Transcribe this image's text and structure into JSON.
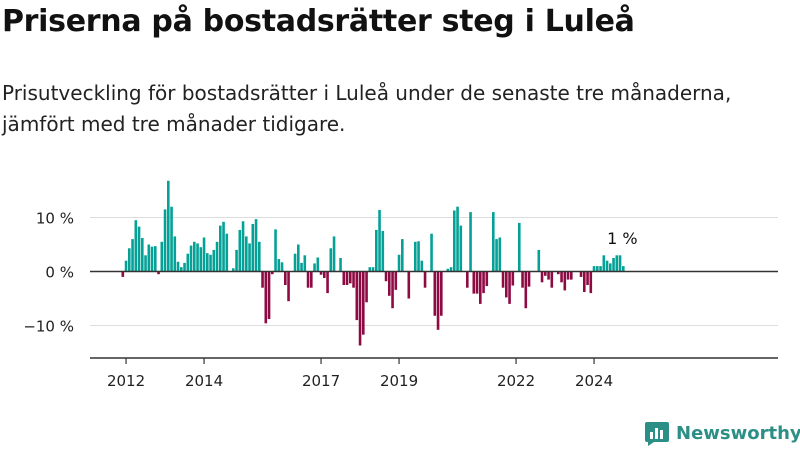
{
  "title": "Priserna på bostadsrätter steg i Luleå",
  "subtitle": "Prisutveckling för bostadsrätter i Luleå under de senaste tre månaderna, jämfört med tre månader tidigare.",
  "logo_text": "Newsworthy",
  "colors": {
    "positive": "#05a196",
    "negative": "#8e0a43",
    "axis": "#333333",
    "grid": "#dddddd",
    "logo": "#2c8f86"
  },
  "chart_data": {
    "type": "bar",
    "x_start": "2011-12",
    "x_end": "2024-12",
    "y_ticks": [
      {
        "value": 10,
        "label": "10 %"
      },
      {
        "value": 0,
        "label": "0 %"
      },
      {
        "value": -10,
        "label": "−10 %"
      }
    ],
    "x_ticks": [
      "2012",
      "2014",
      "2017",
      "2019",
      "2022",
      "2024"
    ],
    "ylim": [
      -15.5,
      17
    ],
    "grid": true,
    "annotation": {
      "label": "1 %",
      "value": 1
    },
    "values": [
      -1,
      2,
      4.3,
      6,
      9.5,
      8.3,
      6.2,
      3,
      5,
      4.6,
      4.7,
      -0.5,
      5.5,
      11.5,
      16.8,
      12,
      6.5,
      1.8,
      0.8,
      1.6,
      3.3,
      4.8,
      5.5,
      5.2,
      4.5,
      6.3,
      3.4,
      3.1,
      4,
      5.5,
      8.5,
      9.2,
      7,
      0,
      0.6,
      4,
      7.7,
      9.3,
      6.5,
      5.2,
      8.8,
      9.7,
      5.5,
      -3,
      -9.6,
      -8.8,
      -0.5,
      7.8,
      2.3,
      1.7,
      -2.5,
      -5.5,
      0,
      3.3,
      5,
      1.6,
      3,
      -3,
      -3,
      1.5,
      2.6,
      -0.6,
      -1.2,
      -4,
      4.3,
      6.5,
      0,
      2.5,
      -2.5,
      -2.5,
      -2.2,
      -3,
      -9,
      -13.7,
      -11.7,
      -5.7,
      0.8,
      0.8,
      7.7,
      11.4,
      7.5,
      -1.8,
      -4.5,
      -6.8,
      -3.4,
      3.1,
      6,
      0,
      -5,
      0,
      5.5,
      5.6,
      2,
      -3,
      0,
      7,
      -8.2,
      -10.8,
      -8.2,
      0,
      0.5,
      0.8,
      11.3,
      12,
      8.5,
      0,
      -3,
      11,
      -4.1,
      -4.1,
      -6,
      -4,
      -2.7,
      0,
      11,
      6,
      6.3,
      -3,
      -4.8,
      -6,
      -2.6,
      0,
      9,
      -3,
      -6.8,
      -2.8,
      0,
      0,
      4,
      -2,
      -0.8,
      -1.5,
      -3,
      0,
      -0.5,
      -2,
      -3.5,
      -1.5,
      -1.5,
      0,
      0,
      -1,
      -3.8,
      -2.5,
      -4,
      1,
      1,
      1,
      3,
      2,
      1.5,
      2.5,
      3,
      3,
      1
    ]
  }
}
